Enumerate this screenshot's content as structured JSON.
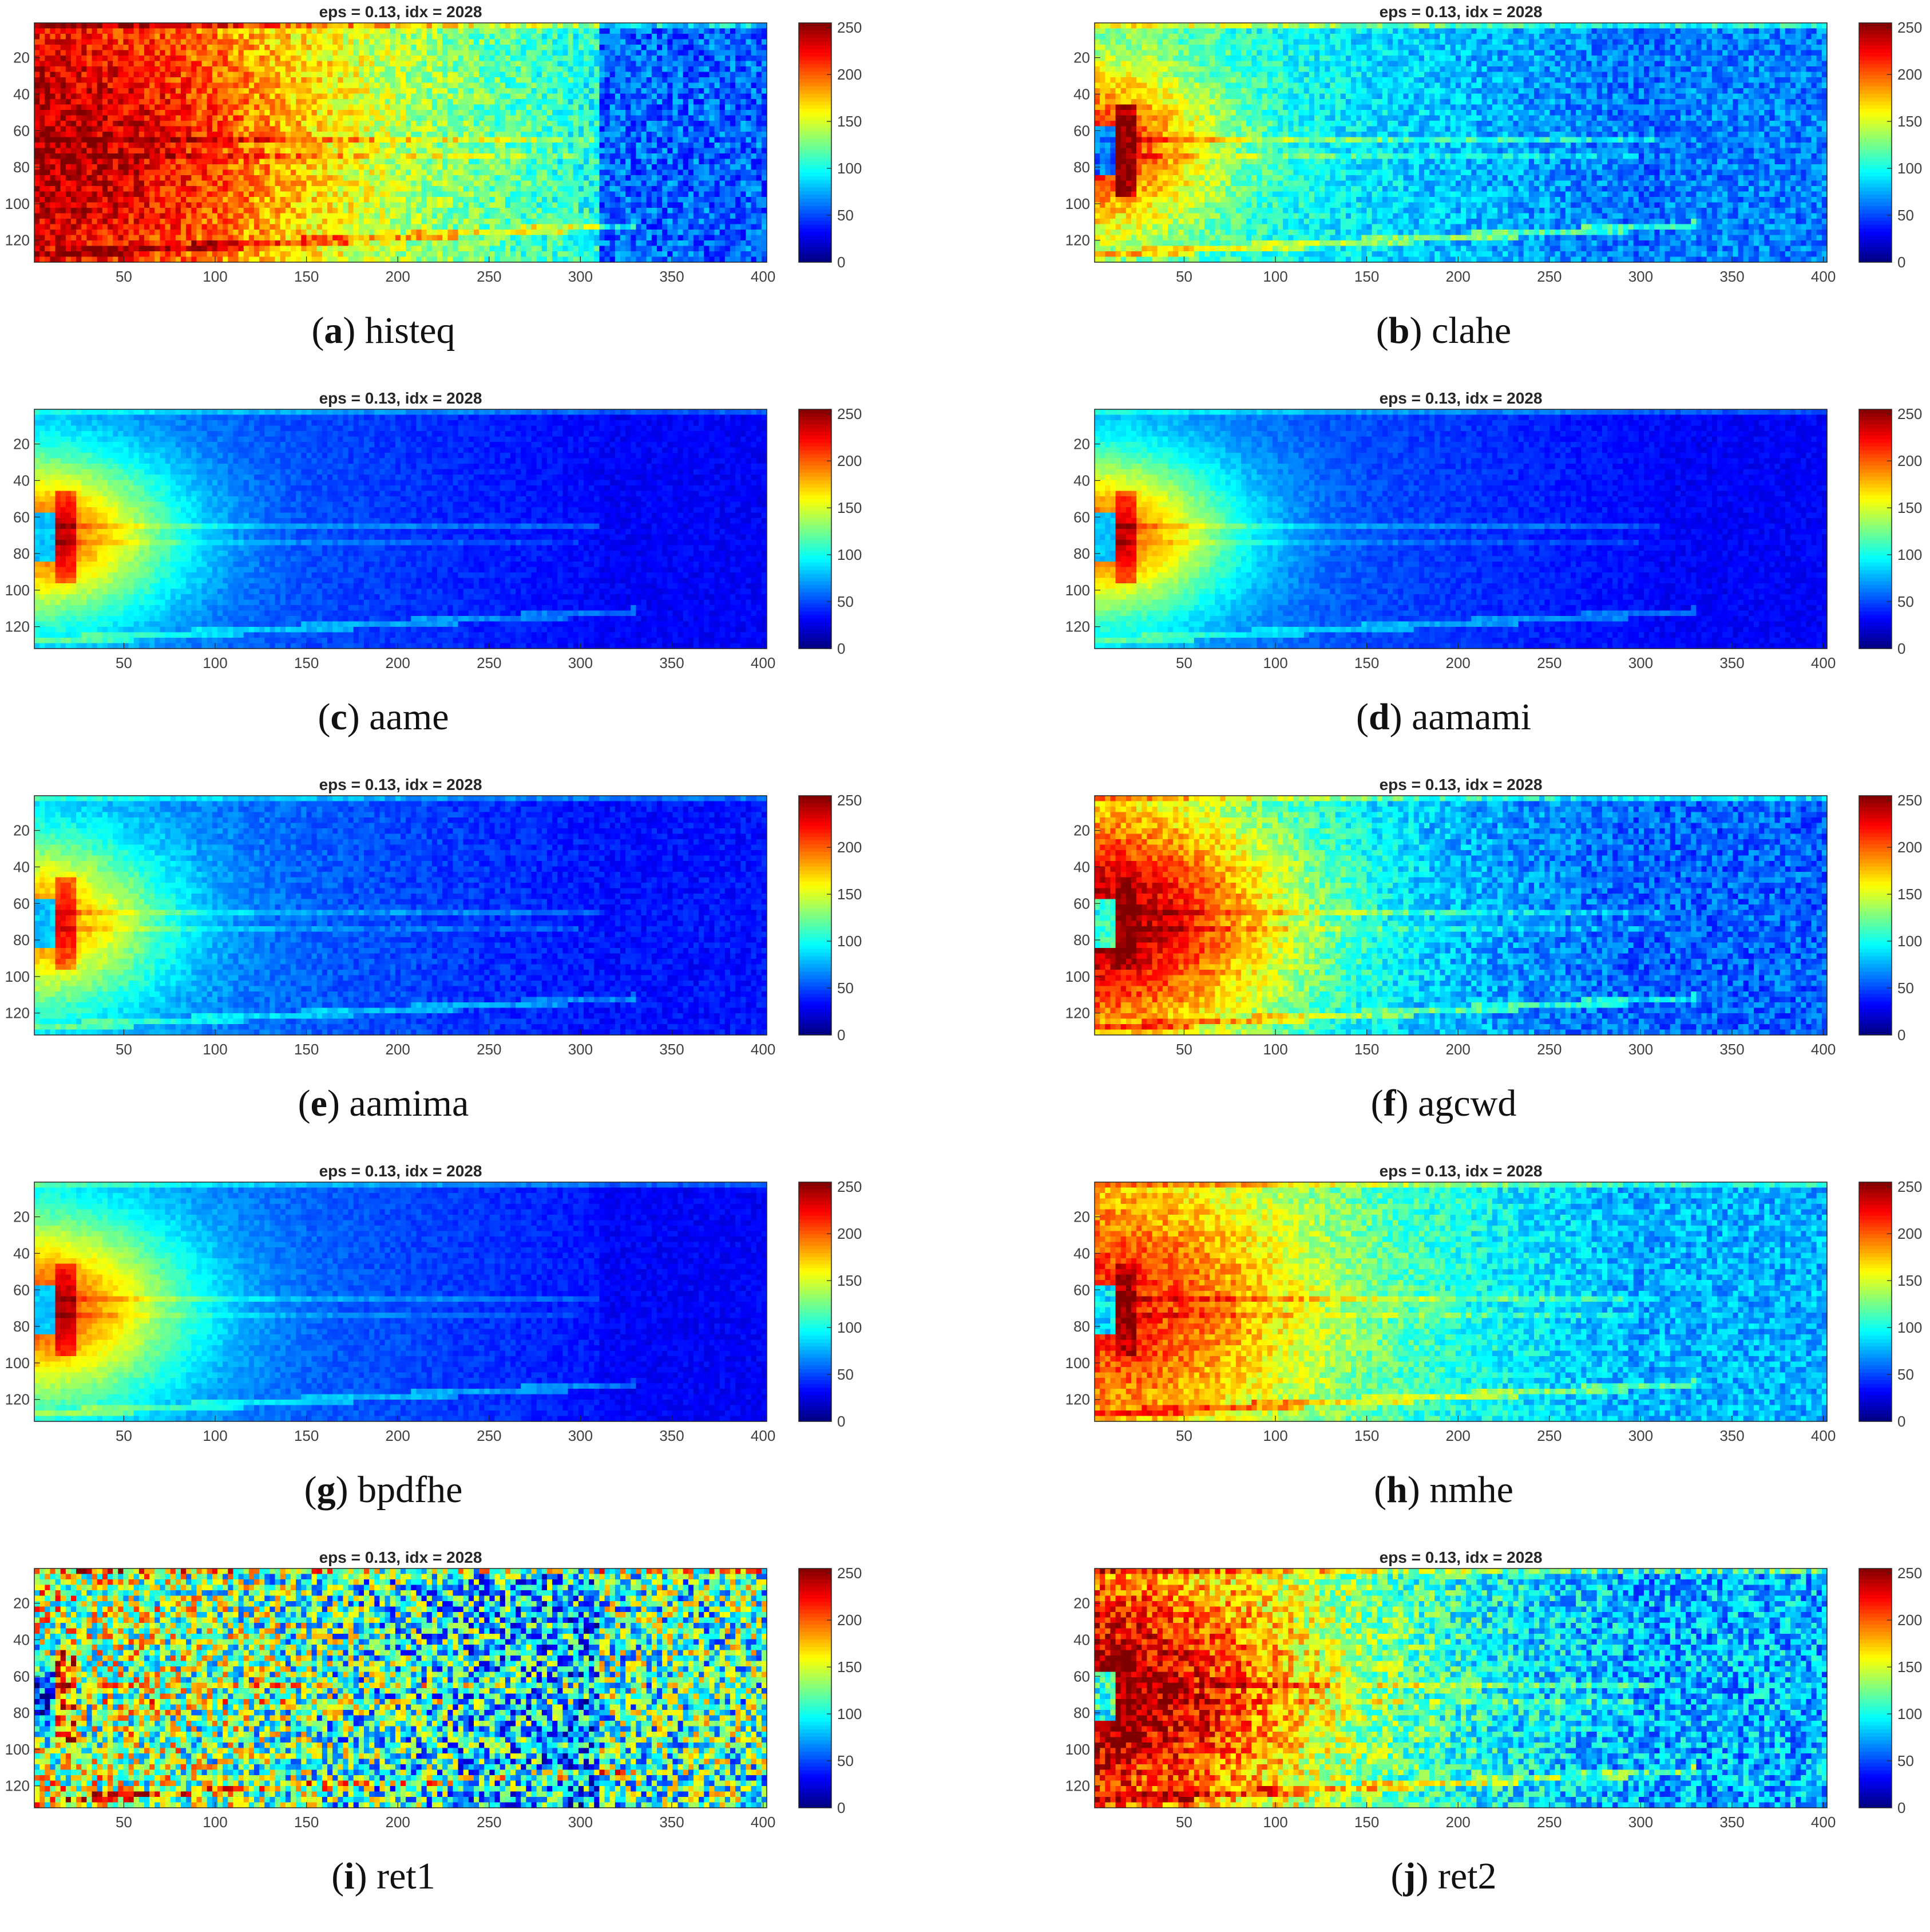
{
  "chart_data": [
    {
      "type": "heatmap",
      "letter": "a",
      "name": "histeq",
      "title": "eps = 0.13, idx = 2028",
      "xlim": [
        1,
        402
      ],
      "ylim": [
        1,
        132
      ],
      "xticks": [
        50,
        100,
        150,
        200,
        250,
        300,
        350,
        400
      ],
      "yticks": [
        20,
        40,
        60,
        80,
        100,
        120
      ],
      "colorbar": {
        "range": [
          0,
          255
        ],
        "ticks": [
          0,
          50,
          100,
          150,
          200,
          250
        ]
      },
      "grid": false,
      "annotations": "uniform heat: red core left, yellow-cyan middle, dark-blue noisy block for x>310"
    },
    {
      "type": "heatmap",
      "letter": "b",
      "name": "clahe",
      "title": "eps = 0.13, idx = 2028",
      "xlim": [
        1,
        402
      ],
      "ylim": [
        1,
        132
      ],
      "xticks": [
        50,
        100,
        150,
        200,
        250,
        300,
        350,
        400
      ],
      "yticks": [
        20,
        40,
        60,
        80,
        100,
        120
      ],
      "colorbar": {
        "range": [
          0,
          255
        ],
        "ticks": [
          0,
          50,
          100,
          150,
          200,
          250
        ]
      },
      "grid": false
    },
    {
      "type": "heatmap",
      "letter": "c",
      "name": "aame",
      "title": "eps = 0.13, idx = 2028",
      "xlim": [
        1,
        402
      ],
      "ylim": [
        1,
        132
      ],
      "xticks": [
        50,
        100,
        150,
        200,
        250,
        300,
        350,
        400
      ],
      "yticks": [
        20,
        40,
        60,
        80,
        100,
        120
      ],
      "colorbar": {
        "range": [
          0,
          255
        ],
        "ticks": [
          0,
          50,
          100,
          150,
          200,
          250
        ]
      },
      "grid": false
    },
    {
      "type": "heatmap",
      "letter": "d",
      "name": "aamami",
      "title": "eps = 0.13, idx = 2028",
      "xlim": [
        1,
        402
      ],
      "ylim": [
        1,
        132
      ],
      "xticks": [
        50,
        100,
        150,
        200,
        250,
        300,
        350,
        400
      ],
      "yticks": [
        20,
        40,
        60,
        80,
        100,
        120
      ],
      "colorbar": {
        "range": [
          0,
          255
        ],
        "ticks": [
          0,
          50,
          100,
          150,
          200,
          250
        ]
      },
      "grid": false
    },
    {
      "type": "heatmap",
      "letter": "e",
      "name": "aamima",
      "title": "eps = 0.13, idx = 2028",
      "xlim": [
        1,
        402
      ],
      "ylim": [
        1,
        132
      ],
      "xticks": [
        50,
        100,
        150,
        200,
        250,
        300,
        350,
        400
      ],
      "yticks": [
        20,
        40,
        60,
        80,
        100,
        120
      ],
      "colorbar": {
        "range": [
          0,
          255
        ],
        "ticks": [
          0,
          50,
          100,
          150,
          200,
          250
        ]
      },
      "grid": false
    },
    {
      "type": "heatmap",
      "letter": "f",
      "name": "agcwd",
      "title": "eps = 0.13, idx = 2028",
      "xlim": [
        1,
        402
      ],
      "ylim": [
        1,
        132
      ],
      "xticks": [
        50,
        100,
        150,
        200,
        250,
        300,
        350,
        400
      ],
      "yticks": [
        20,
        40,
        60,
        80,
        100,
        120
      ],
      "colorbar": {
        "range": [
          0,
          255
        ],
        "ticks": [
          0,
          50,
          100,
          150,
          200,
          250
        ]
      },
      "grid": false
    },
    {
      "type": "heatmap",
      "letter": "g",
      "name": "bpdfhe",
      "title": "eps = 0.13, idx = 2028",
      "xlim": [
        1,
        402
      ],
      "ylim": [
        1,
        132
      ],
      "xticks": [
        50,
        100,
        150,
        200,
        250,
        300,
        350,
        400
      ],
      "yticks": [
        20,
        40,
        60,
        80,
        100,
        120
      ],
      "colorbar": {
        "range": [
          0,
          255
        ],
        "ticks": [
          0,
          50,
          100,
          150,
          200,
          250
        ]
      },
      "grid": false
    },
    {
      "type": "heatmap",
      "letter": "h",
      "name": "nmhe",
      "title": "eps = 0.13, idx = 2028",
      "xlim": [
        1,
        402
      ],
      "ylim": [
        1,
        132
      ],
      "xticks": [
        50,
        100,
        150,
        200,
        250,
        300,
        350,
        400
      ],
      "yticks": [
        20,
        40,
        60,
        80,
        100,
        120
      ],
      "colorbar": {
        "range": [
          0,
          255
        ],
        "ticks": [
          0,
          50,
          100,
          150,
          200,
          250
        ]
      },
      "grid": false
    },
    {
      "type": "heatmap",
      "letter": "i",
      "name": "ret1",
      "title": "eps = 0.13, idx = 2028",
      "xlim": [
        1,
        402
      ],
      "ylim": [
        1,
        132
      ],
      "xticks": [
        50,
        100,
        150,
        200,
        250,
        300,
        350,
        400
      ],
      "yticks": [
        20,
        40,
        60,
        80,
        100,
        120
      ],
      "colorbar": {
        "range": [
          0,
          255
        ],
        "ticks": [
          0,
          50,
          100,
          150,
          200,
          250
        ]
      },
      "grid": false
    },
    {
      "type": "heatmap",
      "letter": "j",
      "name": "ret2",
      "title": "eps = 0.13, idx = 2028",
      "xlim": [
        1,
        402
      ],
      "ylim": [
        1,
        132
      ],
      "xticks": [
        50,
        100,
        150,
        200,
        250,
        300,
        350,
        400
      ],
      "yticks": [
        20,
        40,
        60,
        80,
        100,
        120
      ],
      "colorbar": {
        "range": [
          0,
          255
        ],
        "ticks": [
          0,
          50,
          100,
          150,
          200,
          250
        ]
      },
      "grid": false
    }
  ],
  "captions": [
    {
      "letter": "a",
      "name": "histeq"
    },
    {
      "letter": "b",
      "name": "clahe"
    },
    {
      "letter": "c",
      "name": "aame"
    },
    {
      "letter": "d",
      "name": "aamami"
    },
    {
      "letter": "e",
      "name": "aamima"
    },
    {
      "letter": "f",
      "name": "agcwd"
    },
    {
      "letter": "g",
      "name": "bpdfhe"
    },
    {
      "letter": "h",
      "name": "nmhe"
    },
    {
      "letter": "i",
      "name": "ret1"
    },
    {
      "letter": "j",
      "name": "ret2"
    }
  ]
}
